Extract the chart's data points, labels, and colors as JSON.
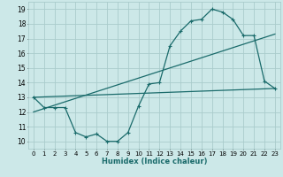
{
  "xlabel": "Humidex (Indice chaleur)",
  "bg_color": "#cce8e8",
  "grid_color": "#aacccc",
  "line_color": "#1a6b6b",
  "xlim": [
    -0.5,
    23.5
  ],
  "ylim": [
    9.5,
    19.5
  ],
  "yticks": [
    10,
    11,
    12,
    13,
    14,
    15,
    16,
    17,
    18,
    19
  ],
  "xticks": [
    0,
    1,
    2,
    3,
    4,
    5,
    6,
    7,
    8,
    9,
    10,
    11,
    12,
    13,
    14,
    15,
    16,
    17,
    18,
    19,
    20,
    21,
    22,
    23
  ],
  "series1_x": [
    0,
    1,
    2,
    3,
    4,
    5,
    6,
    7,
    8,
    9,
    10,
    11,
    12,
    13,
    14,
    15,
    16,
    17,
    18,
    19,
    20,
    21,
    22,
    23
  ],
  "series1_y": [
    13.0,
    12.3,
    12.3,
    12.3,
    10.6,
    10.3,
    10.5,
    10.0,
    10.0,
    10.6,
    12.4,
    13.9,
    14.0,
    16.5,
    17.5,
    18.2,
    18.3,
    19.0,
    18.8,
    18.3,
    17.2,
    17.2,
    14.1,
    13.6
  ],
  "series2_x": [
    0,
    23
  ],
  "series2_y": [
    13.0,
    13.6
  ],
  "series3_x": [
    0,
    23
  ],
  "series3_y": [
    12.0,
    17.3
  ]
}
